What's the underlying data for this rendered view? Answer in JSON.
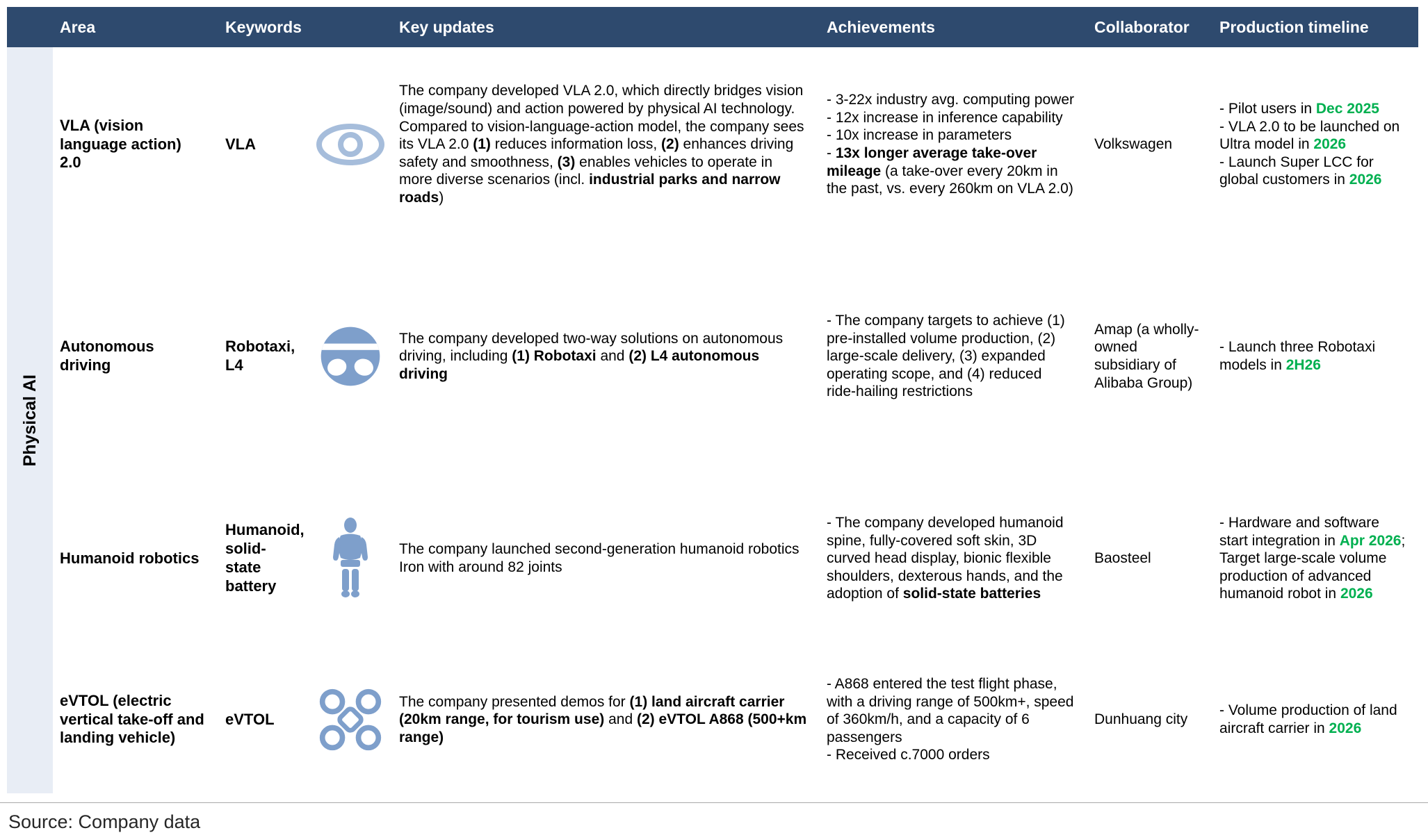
{
  "colors": {
    "header-bg": "#2E4A6E",
    "band-bg": "#E8EDF5",
    "icon-blue": "#7E9FCB",
    "eye-blue": "#A6BDDB",
    "green": "#00B050"
  },
  "header": {
    "area": "Area",
    "keywords": "Keywords",
    "key_updates": "Key updates",
    "achievements": "Achievements",
    "collaborator": "Collaborator",
    "timeline": "Production timeline"
  },
  "group": {
    "label": "Physical AI"
  },
  "rows": [
    {
      "area": "VLA (vision language action) 2.0",
      "keywords": "VLA",
      "icon": "eye-icon",
      "key_updates": [
        {
          "t": "The company developed VLA 2.0, which directly bridges vision (image/sound) and action powered by physical AI technology. Compared to vision-language-action model, the company sees its VLA 2.0 "
        },
        {
          "t": "(1)",
          "b": true
        },
        {
          "t": " reduces information loss, "
        },
        {
          "t": "(2)",
          "b": true
        },
        {
          "t": " enhances driving safety and smoothness, "
        },
        {
          "t": "(3)",
          "b": true
        },
        {
          "t": " enables vehicles to operate in more diverse scenarios (incl. "
        },
        {
          "t": "industrial parks and narrow roads",
          "b": true
        },
        {
          "t": ")"
        }
      ],
      "achievements": [
        {
          "t": "- 3-22x industry avg. computing power\n- 12x increase in inference capability\n- 10x increase in parameters\n- "
        },
        {
          "t": "13x longer average take-over mileage",
          "b": true
        },
        {
          "t": " (a take-over every 20km in the past, vs. every 260km on VLA 2.0)"
        }
      ],
      "collaborator": "Volkswagen",
      "timeline": [
        {
          "t": "- Pilot users in "
        },
        {
          "t": "Dec 2025",
          "g": true
        },
        {
          "t": "\n- VLA 2.0 to be launched on Ultra model in "
        },
        {
          "t": "2026",
          "g": true
        },
        {
          "t": "\n- Launch Super LCC for global customers in "
        },
        {
          "t": "2026",
          "g": true
        }
      ]
    },
    {
      "area": "Autonomous driving",
      "keywords": "Robotaxi, L4",
      "icon": "steering-wheel-icon",
      "key_updates": [
        {
          "t": "The company developed two-way solutions on autonomous driving, including "
        },
        {
          "t": "(1) Robotaxi",
          "b": true
        },
        {
          "t": " and "
        },
        {
          "t": "(2) L4 autonomous driving",
          "b": true
        }
      ],
      "achievements": [
        {
          "t": "- The company targets to achieve (1) pre-installed volume production, (2) large-scale delivery, (3) expanded operating scope, and (4) reduced ride-hailing restrictions"
        }
      ],
      "collaborator": "Amap (a wholly-owned subsidiary of Alibaba Group)",
      "timeline": [
        {
          "t": "- Launch three Robotaxi models in "
        },
        {
          "t": "2H26",
          "g": true
        }
      ]
    },
    {
      "area": "Humanoid robotics",
      "keywords": "Humanoid, solid-state battery",
      "icon": "humanoid-robot-icon",
      "key_updates": [
        {
          "t": "The company launched second-generation humanoid robotics Iron with around 82 joints"
        }
      ],
      "achievements": [
        {
          "t": "- The company developed humanoid spine, fully-covered soft skin, 3D curved head display, bionic flexible shoulders, dexterous hands, and the adoption of "
        },
        {
          "t": "solid-state batteries",
          "b": true
        }
      ],
      "collaborator": "Baosteel",
      "timeline": [
        {
          "t": "- Hardware and software start integration in "
        },
        {
          "t": "Apr 2026",
          "g": true
        },
        {
          "t": "; Target large-scale volume production of advanced humanoid robot in "
        },
        {
          "t": "2026",
          "g": true
        }
      ]
    },
    {
      "area": "eVTOL (electric vertical take-off and landing vehicle)",
      "keywords": "eVTOL",
      "icon": "drone-icon",
      "key_updates": [
        {
          "t": "The company presented demos for "
        },
        {
          "t": "(1) land aircraft carrier (20km range, for tourism use)",
          "b": true
        },
        {
          "t": " and "
        },
        {
          "t": "(2) eVTOL A868 (500+km range)",
          "b": true
        }
      ],
      "achievements": [
        {
          "t": "- A868 entered the test flight phase, with a driving range of 500km+, speed of 360km/h, and a capacity of 6 passengers\n- Received c.7000 orders"
        }
      ],
      "collaborator": "Dunhuang city",
      "timeline": [
        {
          "t": "- Volume production of land aircraft carrier in "
        },
        {
          "t": "2026",
          "g": true
        }
      ]
    }
  ],
  "footer": {
    "source": "Source: Company data"
  }
}
